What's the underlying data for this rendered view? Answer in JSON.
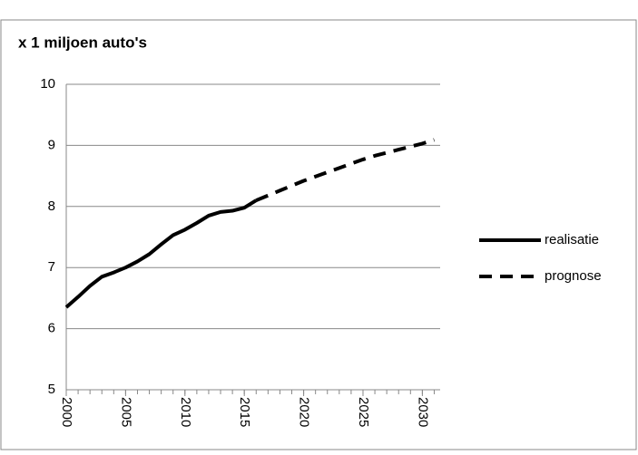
{
  "chart_data": {
    "type": "line",
    "y_label": "x 1 miljoen auto's",
    "x": [
      2000,
      2001,
      2002,
      2003,
      2004,
      2005,
      2006,
      2007,
      2008,
      2009,
      2010,
      2011,
      2012,
      2013,
      2014,
      2015,
      2016,
      2017,
      2018,
      2019,
      2020,
      2021,
      2022,
      2023,
      2024,
      2025,
      2026,
      2027,
      2028,
      2029,
      2030,
      2031
    ],
    "series": [
      {
        "name": "realisatie",
        "color": "#000000",
        "dash": "solid",
        "values": [
          6.35,
          6.52,
          6.7,
          6.85,
          6.92,
          7.0,
          7.1,
          7.22,
          7.38,
          7.53,
          7.62,
          7.73,
          7.85,
          7.91,
          7.93,
          7.98,
          8.1,
          null,
          null,
          null,
          null,
          null,
          null,
          null,
          null,
          null,
          null,
          null,
          null,
          null,
          null,
          null
        ]
      },
      {
        "name": "prognose",
        "color": "#000000",
        "dash": "dashed",
        "values": [
          null,
          null,
          null,
          null,
          null,
          null,
          null,
          null,
          null,
          null,
          null,
          null,
          null,
          null,
          null,
          null,
          8.1,
          8.18,
          8.26,
          8.34,
          8.42,
          8.49,
          8.56,
          8.63,
          8.7,
          8.77,
          8.83,
          8.88,
          8.93,
          8.98,
          9.03,
          9.09
        ]
      }
    ],
    "xlim": [
      2000,
      2031.5
    ],
    "xticks": [
      2000,
      2005,
      2010,
      2015,
      2020,
      2025,
      2030
    ],
    "ylim": [
      5,
      10
    ],
    "yticks": [
      5,
      6,
      7,
      8,
      9,
      10
    ],
    "grid": true,
    "legend": "right"
  }
}
